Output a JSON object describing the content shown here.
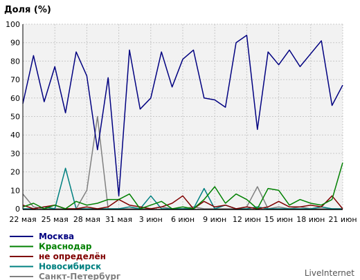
{
  "chart_data": {
    "type": "line",
    "ylabel": "Доля (%)",
    "ylim": [
      0,
      100
    ],
    "yticks": [
      0,
      10,
      20,
      30,
      40,
      50,
      60,
      70,
      80,
      90,
      100
    ],
    "xticks": [
      "22 мая",
      "25 мая",
      "28 мая",
      "31 мая",
      "3 июн",
      "6 июн",
      "9 июн",
      "12 июн",
      "15 июн",
      "18 июн",
      "21 июн"
    ],
    "x_days": 31,
    "grid": true,
    "legend_position": "bottom-left",
    "series": [
      {
        "name": "Москва",
        "color": "#000080",
        "values": [
          57,
          83,
          58,
          77,
          52,
          85,
          72,
          32,
          71,
          7,
          86,
          54,
          60,
          85,
          66,
          81,
          86,
          60,
          59,
          55,
          90,
          94,
          43,
          85,
          78,
          86,
          77,
          84,
          91,
          56,
          67
        ]
      },
      {
        "name": "Краснодар",
        "color": "#008000",
        "values": [
          1,
          3,
          0,
          2,
          0,
          4,
          2,
          3,
          5,
          5,
          8,
          0,
          2,
          4,
          0,
          1,
          0,
          5,
          12,
          3,
          8,
          5,
          0,
          11,
          10,
          2,
          5,
          3,
          2,
          5,
          25
        ]
      },
      {
        "name": "не определён",
        "color": "#800000",
        "values": [
          2,
          0,
          1,
          2,
          0,
          0,
          1,
          0,
          1,
          5,
          2,
          1,
          0,
          1,
          3,
          7,
          0,
          4,
          1,
          2,
          0,
          1,
          0,
          1,
          4,
          1,
          1,
          2,
          1,
          7,
          0
        ]
      },
      {
        "name": "Новосибирск",
        "color": "#008080",
        "values": [
          0,
          0,
          1,
          0,
          22,
          0,
          0,
          0,
          0,
          0,
          1,
          0,
          7,
          0,
          0,
          0,
          0,
          11,
          0,
          2,
          0,
          0,
          1,
          0,
          0,
          0,
          0,
          0,
          1,
          0,
          0
        ]
      },
      {
        "name": "Санкт-Петербург",
        "color": "#808080",
        "values": [
          8,
          1,
          0,
          0,
          0,
          0,
          10,
          50,
          0,
          0,
          0,
          0,
          0,
          1,
          0,
          0,
          1,
          0,
          0,
          0,
          0,
          1,
          12,
          0,
          1,
          0,
          1,
          0,
          0,
          0,
          0
        ]
      }
    ]
  },
  "watermark": "LiveInternet"
}
